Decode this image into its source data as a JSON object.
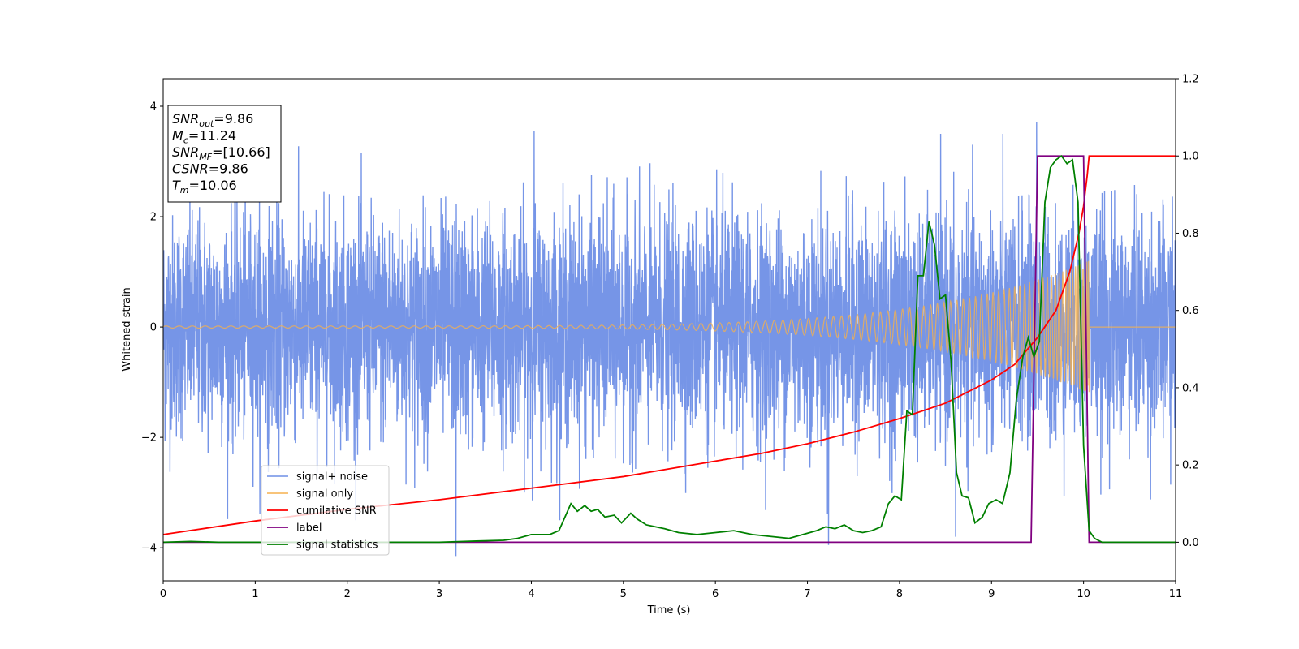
{
  "chart_data": {
    "type": "line",
    "xlabel": "Time (s)",
    "ylabel": "Whitened strain",
    "xlim": [
      0,
      11
    ],
    "ylim_left": [
      -4.6,
      4.5
    ],
    "ylim_right": [
      -0.1,
      1.2
    ],
    "x_ticks": [
      "0",
      "1",
      "2",
      "3",
      "4",
      "5",
      "6",
      "7",
      "8",
      "9",
      "10",
      "11"
    ],
    "y_left_ticks": [
      "−4",
      "−2",
      "0",
      "2",
      "4"
    ],
    "y_right_ticks": [
      "0.0",
      "0.2",
      "0.4",
      "0.6",
      "0.8",
      "1.0",
      "1.2"
    ],
    "grid": false,
    "legend_position": "lower-left",
    "info_box": {
      "position": "top-left",
      "lines": [
        {
          "sym": "SNR",
          "sub": "opt",
          "val": "=9.86"
        },
        {
          "sym": "M",
          "sub": "c",
          "val": "=11.24"
        },
        {
          "sym": "SNR",
          "sub": "MF",
          "val": "=[10.66]"
        },
        {
          "sym": "CSNR",
          "sub": "",
          "val": "=9.86"
        },
        {
          "sym": "T",
          "sub": "m",
          "val": "=10.06"
        }
      ]
    },
    "series": [
      {
        "name": "signal+ noise",
        "axis": "left",
        "color": "#6f8fe6",
        "kind": "noise",
        "noise_std": 1.0,
        "x_range": [
          0,
          11
        ],
        "peak_extremes": [
          {
            "x": 4.03,
            "y": 3.55
          },
          {
            "x": 9.49,
            "y": 3.72
          },
          {
            "x": 3.18,
            "y": -4.15
          },
          {
            "x": 7.23,
            "y": -3.95
          },
          {
            "x": 8.61,
            "y": -3.8
          }
        ]
      },
      {
        "name": "signal only",
        "axis": "left",
        "color": "#f5b04e",
        "kind": "chirp",
        "x_range": [
          0,
          10.06
        ],
        "amplitude_start": 0.02,
        "amplitude_end": 1.2
      },
      {
        "name": "cumilative SNR",
        "axis": "right",
        "color": "#ff0000",
        "x": [
          0,
          1,
          2,
          3,
          4,
          5,
          5.5,
          6,
          6.5,
          7,
          7.5,
          8,
          8.5,
          9,
          9.25,
          9.5,
          9.7,
          9.85,
          9.95,
          10.0,
          10.04,
          10.06,
          11
        ],
        "y": [
          0.02,
          0.055,
          0.085,
          0.11,
          0.14,
          0.17,
          0.19,
          0.21,
          0.23,
          0.255,
          0.285,
          0.32,
          0.36,
          0.42,
          0.46,
          0.53,
          0.6,
          0.7,
          0.8,
          0.87,
          0.95,
          1.0,
          1.0
        ]
      },
      {
        "name": "label",
        "axis": "right",
        "color": "#800080",
        "x": [
          0,
          9.43,
          9.5,
          10.0,
          10.06,
          11
        ],
        "y": [
          0.0,
          0.0,
          1.0,
          1.0,
          0.0,
          0.0
        ]
      },
      {
        "name": "signal statistics",
        "axis": "right",
        "color": "#008000",
        "x": [
          0,
          0.3,
          0.6,
          1,
          1.5,
          2,
          2.5,
          3,
          3.4,
          3.7,
          3.85,
          4.0,
          4.2,
          4.3,
          4.43,
          4.5,
          4.58,
          4.65,
          4.72,
          4.8,
          4.9,
          4.98,
          5.08,
          5.15,
          5.25,
          5.35,
          5.45,
          5.6,
          5.8,
          6.0,
          6.2,
          6.4,
          6.6,
          6.8,
          6.95,
          7.1,
          7.2,
          7.3,
          7.4,
          7.5,
          7.6,
          7.7,
          7.8,
          7.88,
          7.95,
          8.02,
          8.08,
          8.14,
          8.2,
          8.26,
          8.32,
          8.38,
          8.44,
          8.5,
          8.56,
          8.62,
          8.68,
          8.75,
          8.82,
          8.9,
          8.97,
          9.05,
          9.12,
          9.2,
          9.27,
          9.34,
          9.4,
          9.46,
          9.52,
          9.58,
          9.64,
          9.7,
          9.76,
          9.82,
          9.88,
          9.94,
          10.0,
          10.06,
          10.12,
          10.2,
          10.4,
          11
        ],
        "y": [
          0.0,
          0.002,
          0.0,
          0.0,
          0.0,
          0.0,
          0.0,
          0.0,
          0.003,
          0.005,
          0.01,
          0.02,
          0.02,
          0.03,
          0.1,
          0.08,
          0.095,
          0.08,
          0.085,
          0.065,
          0.07,
          0.05,
          0.075,
          0.06,
          0.045,
          0.04,
          0.035,
          0.025,
          0.02,
          0.025,
          0.03,
          0.02,
          0.015,
          0.01,
          0.02,
          0.03,
          0.04,
          0.035,
          0.045,
          0.03,
          0.025,
          0.03,
          0.04,
          0.1,
          0.12,
          0.11,
          0.34,
          0.33,
          0.69,
          0.69,
          0.83,
          0.77,
          0.63,
          0.64,
          0.47,
          0.18,
          0.12,
          0.115,
          0.05,
          0.065,
          0.1,
          0.11,
          0.1,
          0.18,
          0.37,
          0.48,
          0.53,
          0.48,
          0.52,
          0.88,
          0.97,
          0.99,
          1.0,
          0.98,
          0.99,
          0.88,
          0.25,
          0.03,
          0.01,
          0.0,
          0.0,
          0.0
        ]
      }
    ]
  }
}
